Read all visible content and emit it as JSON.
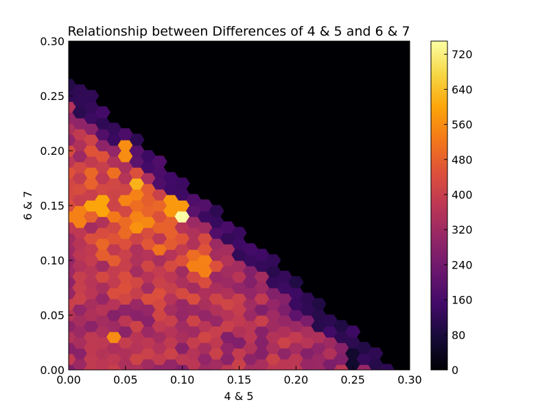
{
  "chart_data": {
    "type": "heatmap",
    "subtype": "hexbin",
    "title": "Relationship between Differences of 4 & 5 and 6 & 7",
    "xlabel": "4 & 5",
    "ylabel": "6 & 7",
    "xlim": [
      0.0,
      0.3
    ],
    "ylim": [
      0.0,
      0.3
    ],
    "xticks": [
      "0.00",
      "0.05",
      "0.10",
      "0.15",
      "0.20",
      "0.25",
      "0.30"
    ],
    "yticks": [
      "0.00",
      "0.05",
      "0.10",
      "0.15",
      "0.20",
      "0.25",
      "0.30"
    ],
    "colormap": "inferno",
    "background_color": "#000004",
    "colorbar": {
      "range": [
        0,
        750
      ],
      "ticks": [
        "0",
        "80",
        "160",
        "240",
        "320",
        "400",
        "480",
        "560",
        "640",
        "720"
      ]
    },
    "grid": false,
    "hex_count_estimates": [
      {
        "x": 0.005,
        "y": 0.14,
        "value": 540
      },
      {
        "x": 0.025,
        "y": 0.15,
        "value": 600
      },
      {
        "x": 0.05,
        "y": 0.2,
        "value": 560
      },
      {
        "x": 0.06,
        "y": 0.17,
        "value": 620
      },
      {
        "x": 0.1,
        "y": 0.14,
        "value": 750
      },
      {
        "x": 0.095,
        "y": 0.15,
        "value": 580
      },
      {
        "x": 0.115,
        "y": 0.095,
        "value": 540
      },
      {
        "x": 0.04,
        "y": 0.03,
        "value": 560
      },
      {
        "x": 0.05,
        "y": 0.13,
        "value": 500
      },
      {
        "x": 0.09,
        "y": 0.13,
        "value": 480
      },
      {
        "x": 0.015,
        "y": 0.25,
        "value": 120
      },
      {
        "x": 0.2,
        "y": 0.05,
        "value": 200
      },
      {
        "x": 0.25,
        "y": 0.01,
        "value": 60
      }
    ]
  }
}
